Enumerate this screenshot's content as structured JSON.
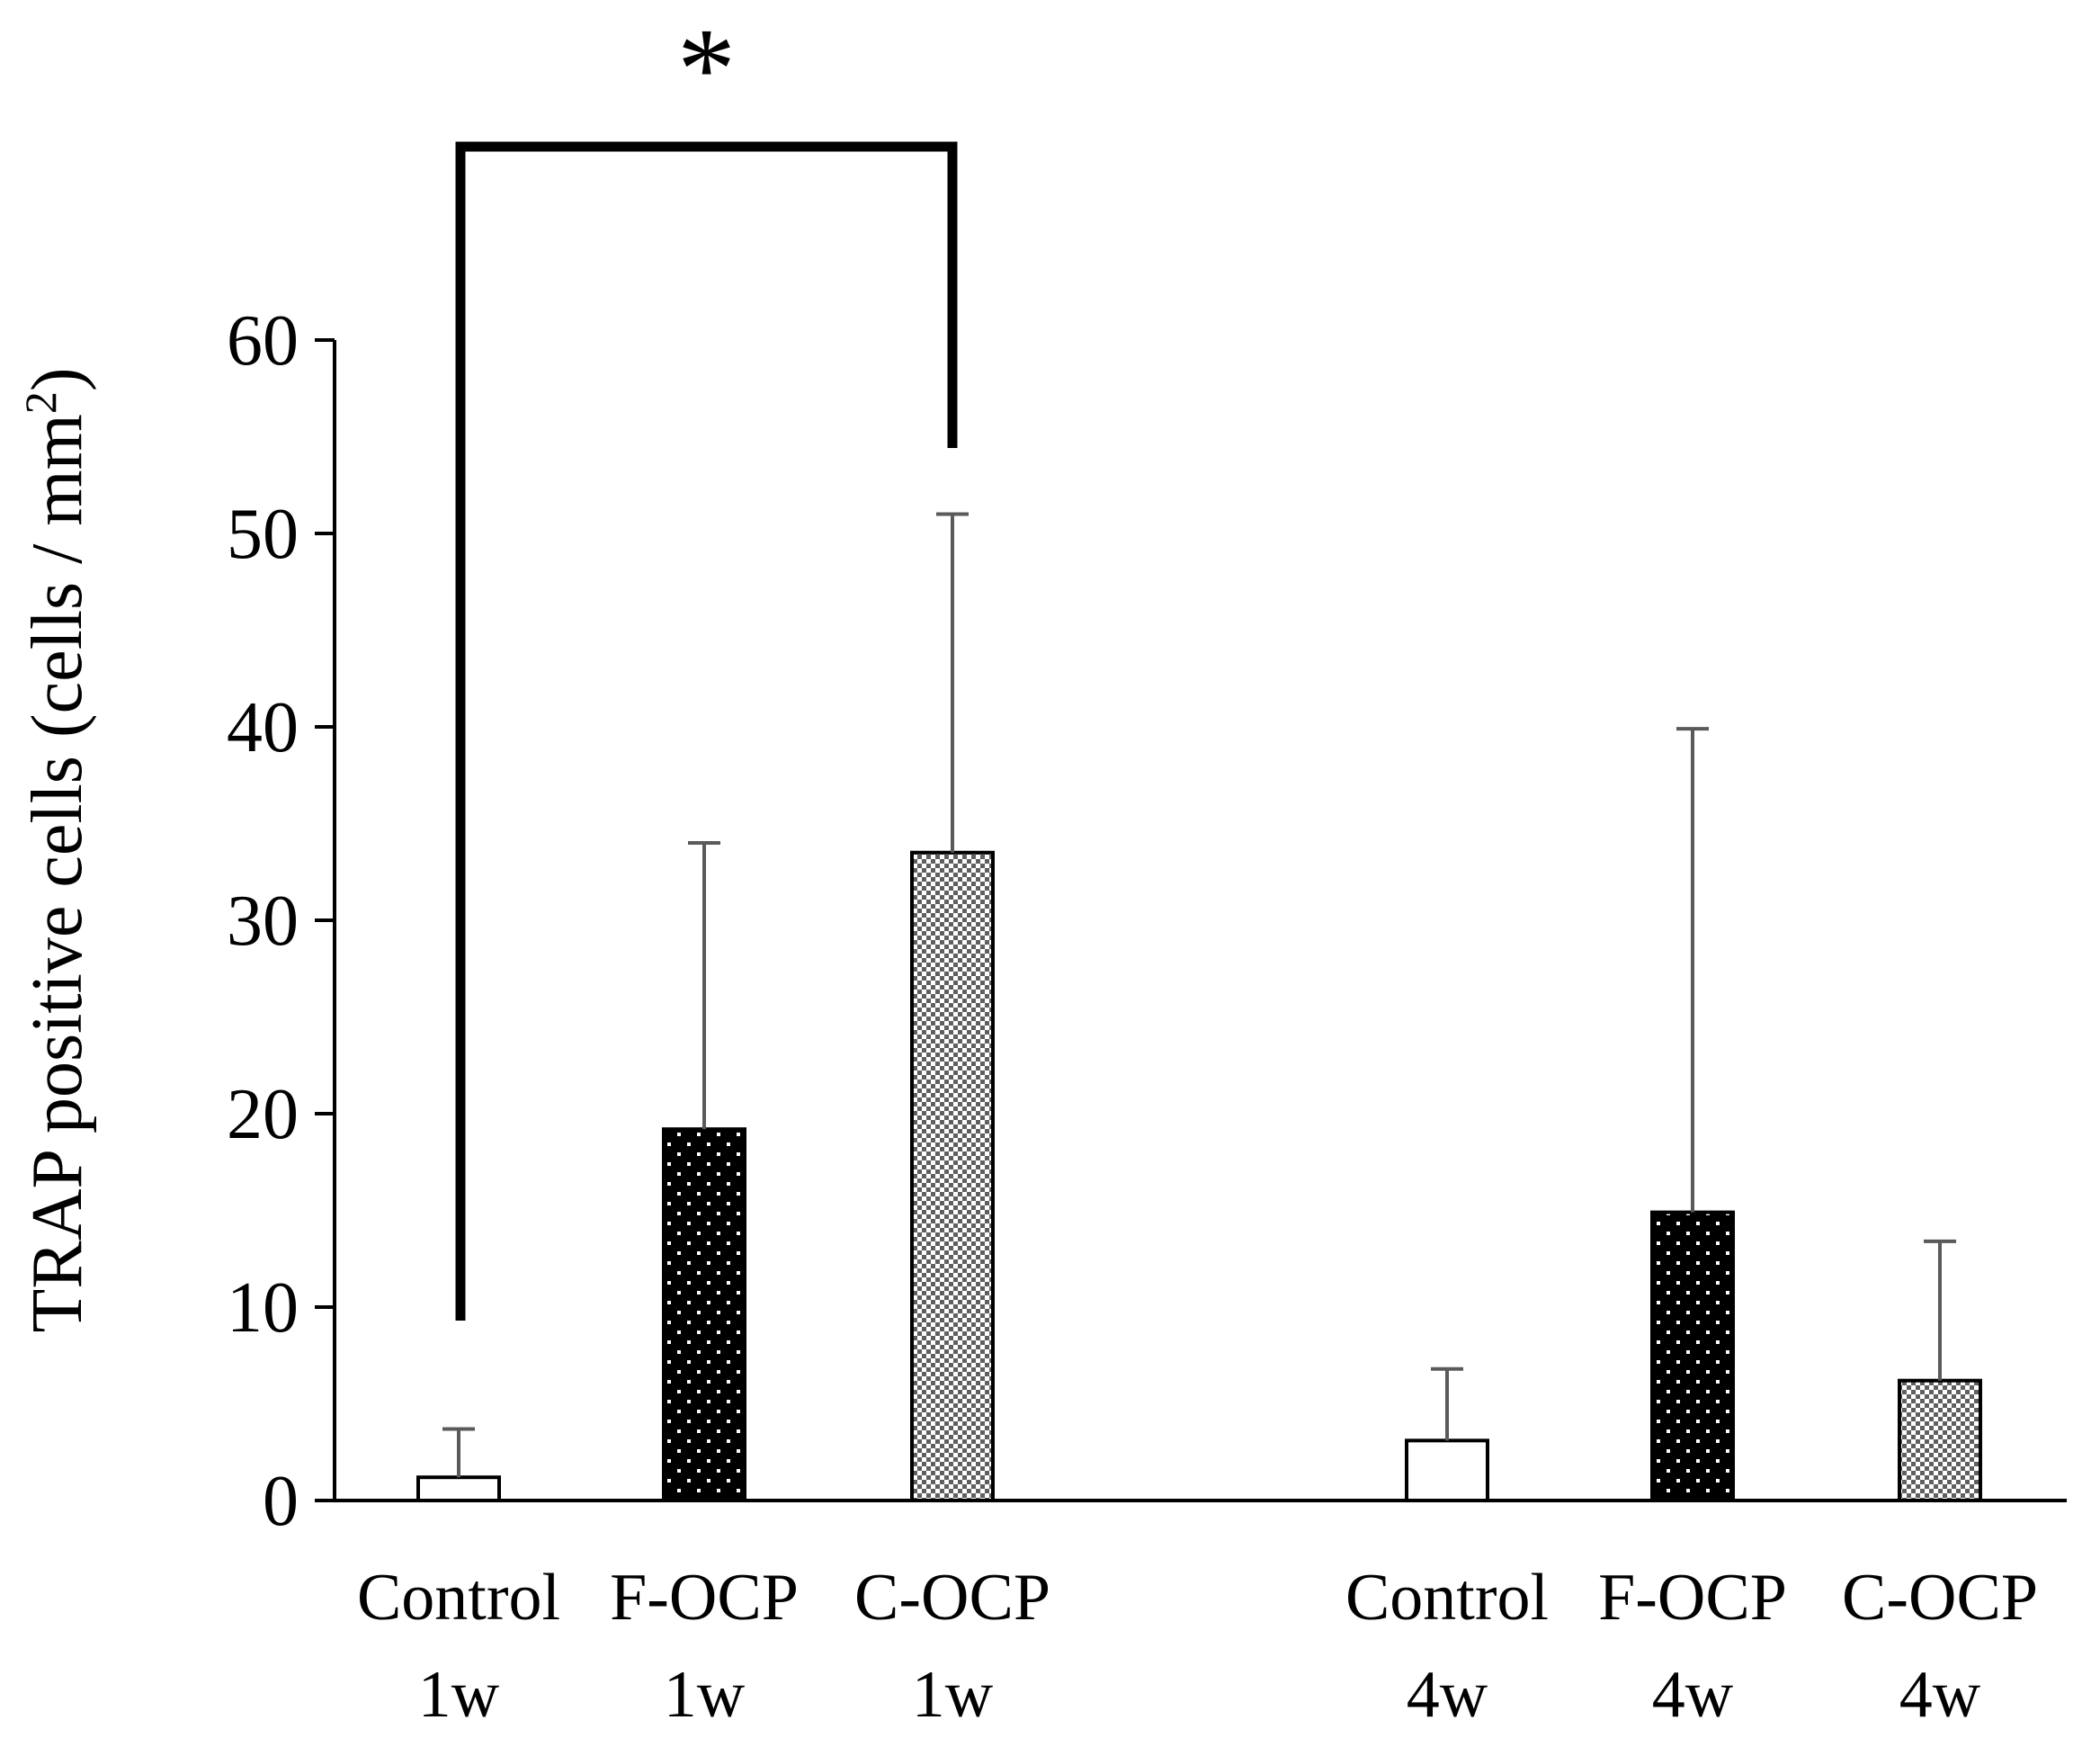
{
  "chart_data": {
    "type": "bar",
    "title": "",
    "xlabel": "",
    "ylabel": "TRAP positive cells (cells / mm",
    "ylabel_superscript": "2",
    "ylabel_suffix": ")",
    "ylim": [
      0,
      60
    ],
    "yticks": [
      0,
      10,
      20,
      30,
      40,
      50,
      60
    ],
    "grid": false,
    "categories": [
      {
        "line1": "Control",
        "line2": "1w"
      },
      {
        "line1": "F-OCP",
        "line2": "1w"
      },
      {
        "line1": "C-OCP",
        "line2": "1w"
      },
      {
        "line1": "Control",
        "line2": "4w"
      },
      {
        "line1": "F-OCP",
        "line2": "4w"
      },
      {
        "line1": "C-OCP",
        "line2": "4w"
      }
    ],
    "values": [
      1.2,
      19.2,
      33.5,
      3.1,
      14.9,
      6.2
    ],
    "error_upper": [
      3.7,
      34.0,
      51.0,
      6.8,
      39.9,
      13.4
    ],
    "fills": [
      "white",
      "black-dots",
      "gray-dots",
      "white",
      "black-dots",
      "gray-dots"
    ],
    "significance": {
      "from_index": 0,
      "to_index": 2,
      "label": "*"
    }
  },
  "colors": {
    "axis": "#000000",
    "error_bar": "#5a5a5a",
    "black_fill": "#000000",
    "gray_fill": "#8a8a8a",
    "white_fill": "#ffffff"
  }
}
